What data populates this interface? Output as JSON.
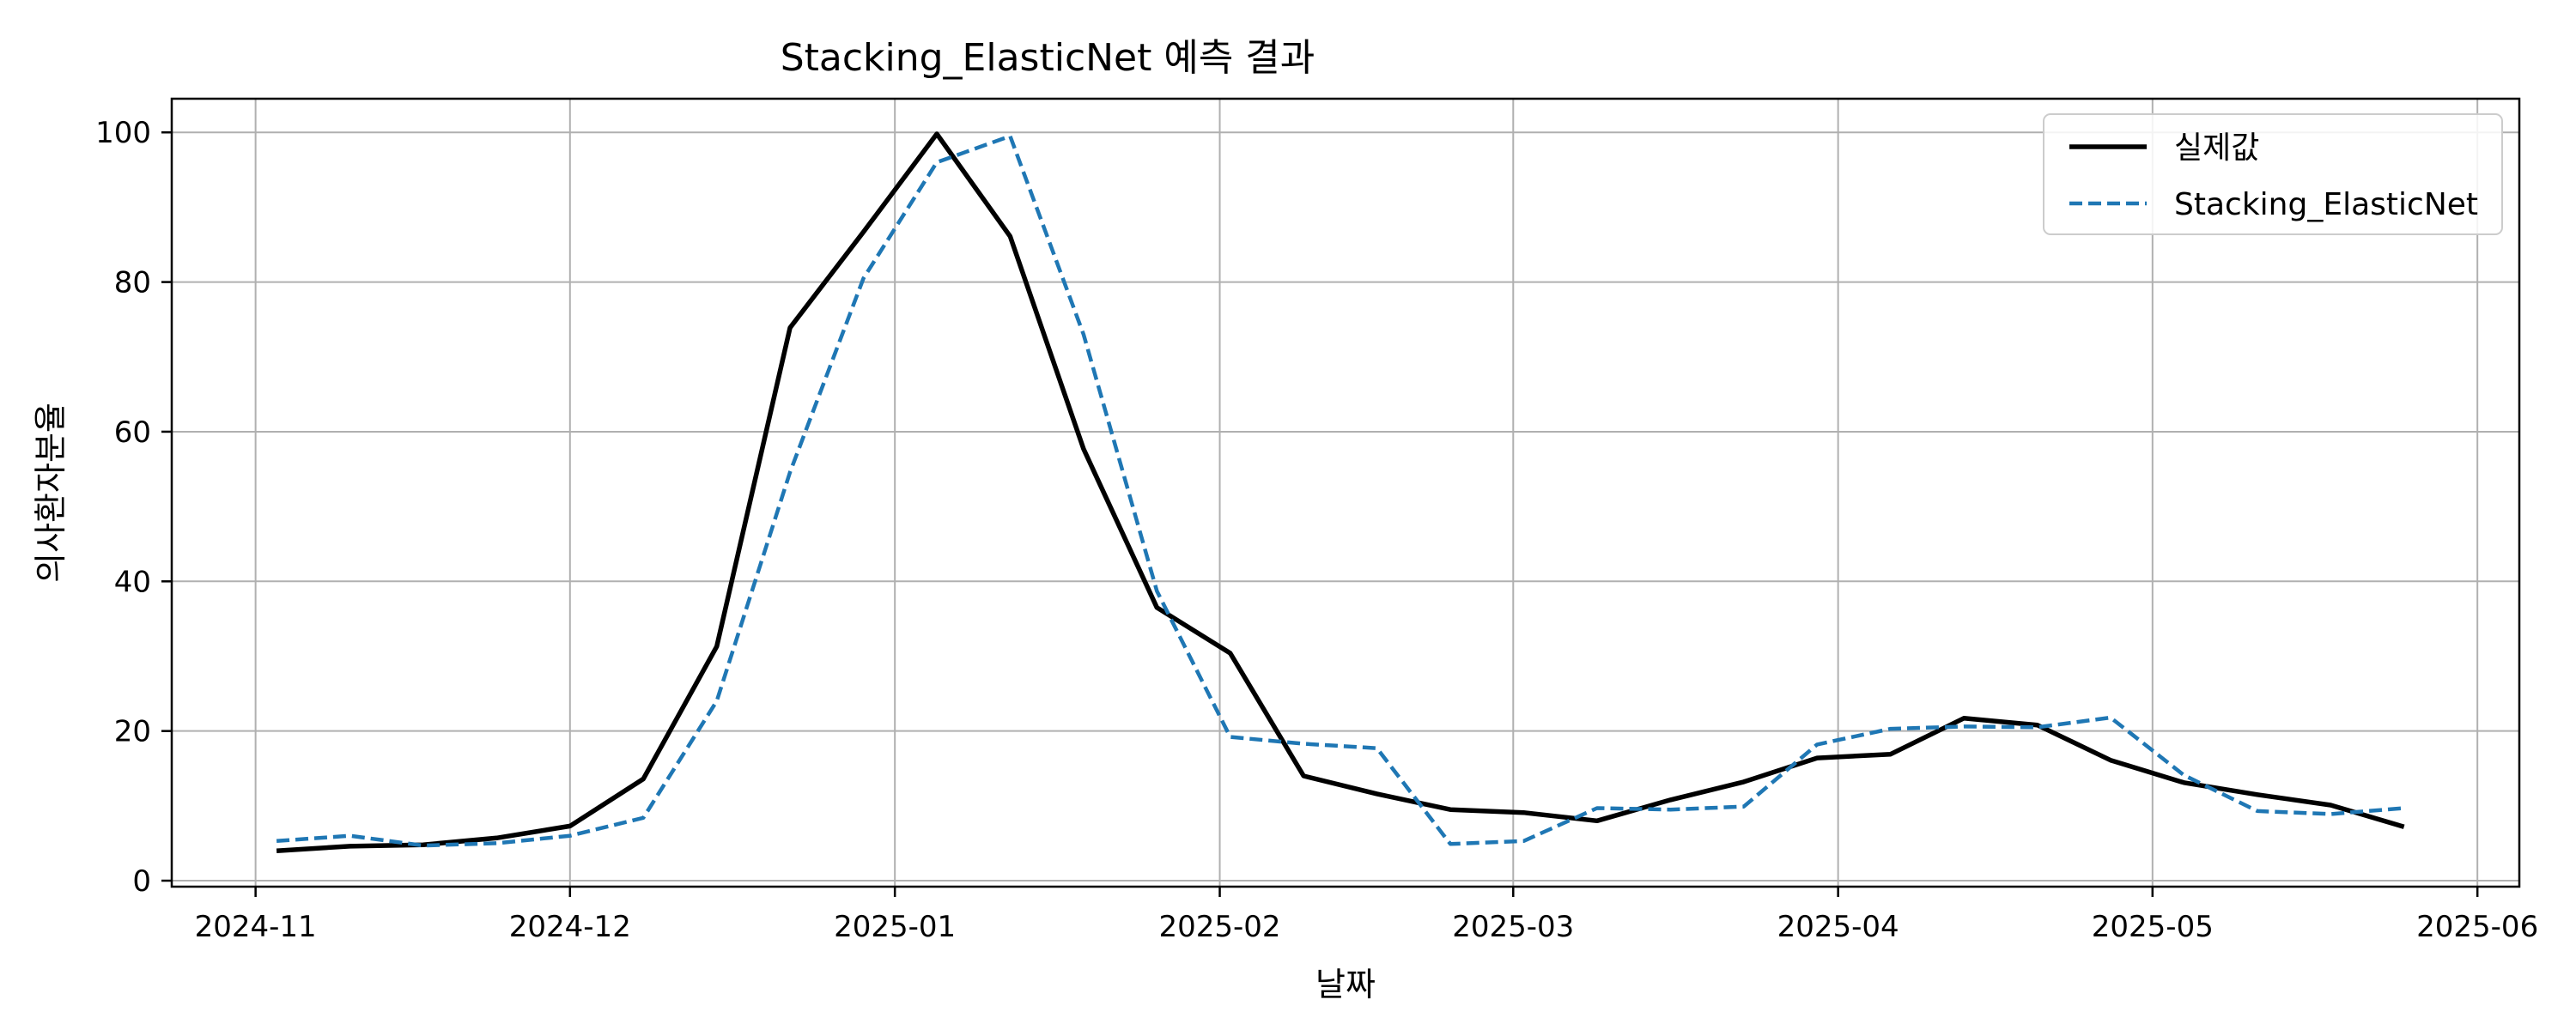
{
  "chart_data": {
    "type": "line",
    "title": "Stacking_ElasticNet 예측 결과",
    "xlabel": "날짜",
    "ylabel": "의사환자분율",
    "x_tick_labels": [
      "2024-11",
      "2024-12",
      "2025-01",
      "2025-02",
      "2025-03",
      "2025-04",
      "2025-05",
      "2025-06"
    ],
    "x_tick_dates": [
      "2024-11-01",
      "2024-12-01",
      "2025-01-01",
      "2025-02-01",
      "2025-03-01",
      "2025-04-01",
      "2025-05-01",
      "2025-06-01"
    ],
    "y_ticks": [
      0,
      20,
      40,
      60,
      80,
      100
    ],
    "xlim": [
      "2024-10-24",
      "2025-06-05"
    ],
    "ylim": [
      -0.8,
      104.5
    ],
    "grid": true,
    "legend_position": "top-right",
    "x": [
      "2024-11-03",
      "2024-11-10",
      "2024-11-17",
      "2024-11-24",
      "2024-12-01",
      "2024-12-08",
      "2024-12-15",
      "2024-12-22",
      "2024-12-29",
      "2025-01-05",
      "2025-01-12",
      "2025-01-19",
      "2025-01-26",
      "2025-02-02",
      "2025-02-09",
      "2025-02-16",
      "2025-02-23",
      "2025-03-02",
      "2025-03-09",
      "2025-03-16",
      "2025-03-23",
      "2025-03-30",
      "2025-04-06",
      "2025-04-13",
      "2025-04-20",
      "2025-04-27",
      "2025-05-04",
      "2025-05-11",
      "2025-05-18",
      "2025-05-25"
    ],
    "series": [
      {
        "name": "실제값",
        "color": "#000000",
        "style": "solid",
        "values": [
          4.0,
          4.6,
          4.8,
          5.7,
          7.3,
          13.6,
          31.3,
          73.9,
          86.7,
          99.8,
          86.1,
          57.7,
          36.5,
          30.4,
          14.0,
          11.6,
          9.5,
          9.1,
          8.0,
          10.8,
          13.2,
          16.4,
          16.9,
          21.7,
          20.8,
          16.1,
          13.1,
          11.5,
          10.1,
          7.2
        ]
      },
      {
        "name": "Stacking_ElasticNet",
        "color": "#1f77b4",
        "style": "dashed",
        "values": [
          5.3,
          6.0,
          4.7,
          5.0,
          6.0,
          8.4,
          24.0,
          54.6,
          80.5,
          96.0,
          99.5,
          73.0,
          38.7,
          19.2,
          18.3,
          17.7,
          4.9,
          5.3,
          9.7,
          9.5,
          9.9,
          18.2,
          20.3,
          20.6,
          20.5,
          21.8,
          14.1,
          9.3,
          8.9,
          9.7
        ]
      }
    ]
  }
}
